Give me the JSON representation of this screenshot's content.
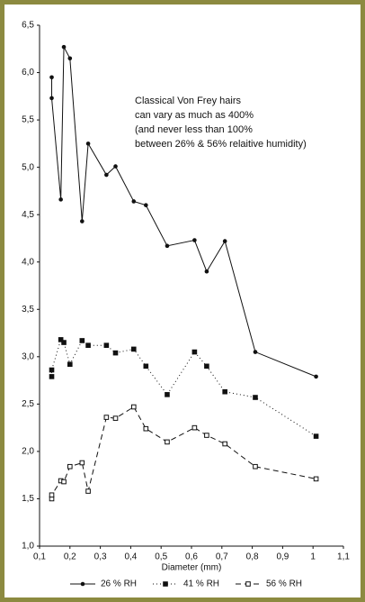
{
  "chart_data": {
    "type": "line",
    "annotation": [
      "Classical Von Frey hairs",
      "can vary as much as 400%",
      "(and never less than 100%",
      "between 26% & 56% relaitive humidity)"
    ],
    "xlabel": "Diameter (mm)",
    "x": [
      0.14,
      0.14,
      0.17,
      0.18,
      0.2,
      0.24,
      0.26,
      0.32,
      0.35,
      0.41,
      0.45,
      0.52,
      0.61,
      0.65,
      0.71,
      0.81,
      1.01
    ],
    "series": [
      {
        "name": "26 % RH",
        "color": "#111111",
        "line_style": "solid",
        "marker": "circle",
        "values": [
          5.95,
          5.73,
          4.66,
          6.27,
          6.15,
          4.43,
          5.25,
          4.92,
          5.01,
          4.64,
          4.6,
          4.17,
          4.23,
          3.9,
          4.22,
          3.05,
          2.79
        ]
      },
      {
        "name": "41 % RH",
        "color": "#111111",
        "line_style": "dotted",
        "marker": "square",
        "values": [
          2.79,
          2.86,
          3.18,
          3.15,
          2.92,
          3.17,
          3.12,
          3.12,
          3.04,
          3.08,
          2.9,
          2.6,
          3.05,
          2.9,
          2.63,
          2.57,
          2.16
        ]
      },
      {
        "name": "56 % RH",
        "color": "#111111",
        "line_style": "dashed",
        "marker": "open-square",
        "values": [
          1.5,
          1.54,
          1.69,
          1.68,
          1.84,
          1.88,
          1.58,
          2.36,
          2.35,
          2.47,
          2.24,
          2.1,
          2.25,
          2.17,
          2.08,
          1.84,
          1.71
        ]
      }
    ],
    "xlim": [
      0.1,
      1.1
    ],
    "xticks": [
      {
        "value": 0.1,
        "label": "0,1"
      },
      {
        "value": 0.2,
        "label": "0,2"
      },
      {
        "value": 0.3,
        "label": "0,3"
      },
      {
        "value": 0.4,
        "label": "0,4"
      },
      {
        "value": 0.5,
        "label": "0,5"
      },
      {
        "value": 0.6,
        "label": "0,6"
      },
      {
        "value": 0.7,
        "label": "0,7"
      },
      {
        "value": 0.8,
        "label": "0,8"
      },
      {
        "value": 0.9,
        "label": "0,9"
      },
      {
        "value": 1,
        "label": "1"
      },
      {
        "value": 1.1,
        "label": "1,1"
      }
    ],
    "ylim": [
      1,
      6.5
    ],
    "yticks": [
      {
        "value": 1,
        "label": "1,0"
      },
      {
        "value": 1.5,
        "label": "1,5"
      },
      {
        "value": 2,
        "label": "2,0"
      },
      {
        "value": 2.5,
        "label": "2,5"
      },
      {
        "value": 3,
        "label": "3,0"
      },
      {
        "value": 3.5,
        "label": "3,5"
      },
      {
        "value": 4,
        "label": "4,0"
      },
      {
        "value": 4.5,
        "label": "4,5"
      },
      {
        "value": 5,
        "label": "5,0"
      },
      {
        "value": 5.5,
        "label": "5,5"
      },
      {
        "value": 6,
        "label": "6,0"
      },
      {
        "value": 6.5,
        "label": "6,5"
      }
    ],
    "grid": false
  }
}
